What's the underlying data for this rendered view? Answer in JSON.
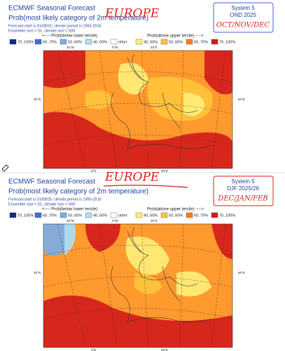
{
  "panels": [
    {
      "title": "ECMWF Seasonal Forecast",
      "subtitle": "Prob(most likely category of 2m temperature)",
      "forecast_note": "Forecast start is 01/08/25, climate period is 1993-2016",
      "ensemble_note": "Ensemble size = 51, climate size = 600",
      "system": "System 5",
      "period": "OND 2025",
      "handwritten_region": "EUROPE",
      "handwritten_months": "OCT/NOV/DEC",
      "legend_below_label": "<---- Prob(below lower tercile)",
      "legend_above_label": "Prob(above upper tercile) ---->",
      "legend_items": [
        {
          "label": "70..100%",
          "color": "#0d2a8a"
        },
        {
          "label": "60..70%",
          "color": "#3d6fd6"
        },
        {
          "label": "50..60%",
          "color": "#78aee9"
        },
        {
          "label": "40..50%",
          "color": "#aee0f5"
        },
        {
          "label": "other",
          "color": "#ffffff"
        },
        {
          "label": "40..50%",
          "color": "#fff07a"
        },
        {
          "label": "50..60%",
          "color": "#ffc43c"
        },
        {
          "label": "60..70%",
          "color": "#ff7d10"
        },
        {
          "label": "70..100%",
          "color": "#d31a1a"
        }
      ],
      "map_labels": [
        "30°W",
        "0°W",
        "30°E",
        "30°N",
        "60°E",
        "0°E",
        "30°E"
      ]
    },
    {
      "title": "ECMWF Seasonal Forecast",
      "subtitle": "Prob(most likely category of 2m temperature)",
      "forecast_note": "Forecast start is 01/08/25, climate period is 1993-2016",
      "ensemble_note": "Ensemble size = 51, climate size = 600",
      "system": "System 5",
      "period": "DJF 2025/26",
      "handwritten_region": "EUROPE",
      "handwritten_months": "DEC/JAN/FEB",
      "legend_below_label": "<---- Prob(below lower tercile)",
      "legend_above_label": "Prob(above upper tercile) ---->",
      "legend_items": [
        {
          "label": "70..100%",
          "color": "#0d2a8a"
        },
        {
          "label": "60..70%",
          "color": "#3d6fd6"
        },
        {
          "label": "50..60%",
          "color": "#78aee9"
        },
        {
          "label": "40..50%",
          "color": "#aee0f5"
        },
        {
          "label": "other",
          "color": "#ffffff"
        },
        {
          "label": "40..50%",
          "color": "#fff07a"
        },
        {
          "label": "50..60%",
          "color": "#ffc43c"
        },
        {
          "label": "60..70%",
          "color": "#ff7d10"
        },
        {
          "label": "70..100%",
          "color": "#d31a1a"
        }
      ],
      "map_labels": [
        "30°W",
        "0°W",
        "30°E",
        "30°N",
        "60°E",
        "0°E",
        "30°E"
      ]
    }
  ]
}
